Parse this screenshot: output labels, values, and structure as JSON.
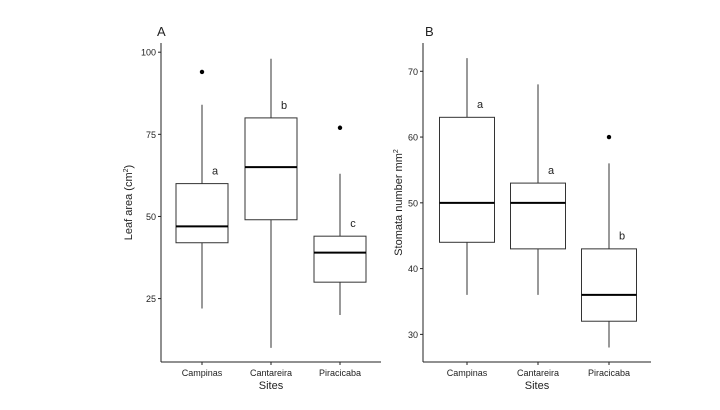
{
  "chart_data": [
    {
      "type": "box",
      "panel_label": "A",
      "xlabel": "Sites",
      "ylabel": "Leaf area (cm",
      "ylabel_sup": "2",
      "ylabel_end": ")",
      "ylim": [
        5.7,
        102.8
      ],
      "yticks": [
        25,
        50,
        75,
        100
      ],
      "grid": false,
      "categories": [
        "Campinas",
        "Cantareira",
        "Piracicaba"
      ],
      "boxes": [
        {
          "min": 22,
          "q1": 42,
          "median": 47,
          "q3": 60,
          "max": 84,
          "outliers": [
            94
          ],
          "letter": "a",
          "letter_y": 64
        },
        {
          "min": 10,
          "q1": 49,
          "median": 65,
          "q3": 80,
          "max": 98,
          "outliers": [],
          "letter": "b",
          "letter_y": 84
        },
        {
          "min": 20,
          "q1": 30,
          "median": 39,
          "q3": 44,
          "max": 63,
          "outliers": [
            77
          ],
          "letter": "c",
          "letter_y": 48
        }
      ]
    },
    {
      "type": "box",
      "panel_label": "B",
      "xlabel": "Sites",
      "ylabel": "Stomata number  mm",
      "ylabel_sup": "2",
      "ylabel_end": "",
      "ylim": [
        25.8,
        74.3
      ],
      "yticks": [
        30,
        40,
        50,
        60,
        70
      ],
      "grid": false,
      "categories": [
        "Campinas",
        "Cantareira",
        "Piracicaba"
      ],
      "boxes": [
        {
          "min": 36,
          "q1": 44,
          "median": 50,
          "q3": 63,
          "max": 72,
          "outliers": [],
          "letter": "a",
          "letter_y": 65
        },
        {
          "min": 36,
          "q1": 43,
          "median": 50,
          "q3": 53,
          "max": 68,
          "outliers": [],
          "letter": "a",
          "letter_y": 55
        },
        {
          "min": 28,
          "q1": 32,
          "median": 36,
          "q3": 43,
          "max": 56,
          "outliers": [
            60
          ],
          "letter": "b",
          "letter_y": 45
        }
      ]
    }
  ]
}
